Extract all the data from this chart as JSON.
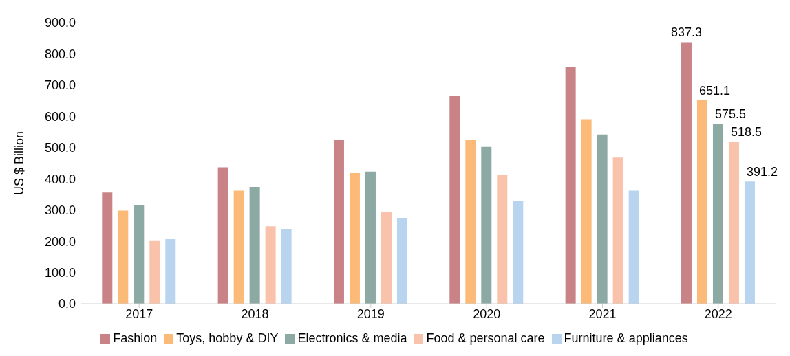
{
  "chart_data": {
    "type": "bar",
    "ylabel": "US $ Billion",
    "categories": [
      "2017",
      "2018",
      "2019",
      "2020",
      "2021",
      "2022"
    ],
    "ylim": [
      0,
      900
    ],
    "yticks": [
      {
        "value": 0,
        "label": "0.0"
      },
      {
        "value": 100,
        "label": "100.0"
      },
      {
        "value": 200,
        "label": "200.0"
      },
      {
        "value": 300,
        "label": "300.0"
      },
      {
        "value": 400,
        "label": "400.0"
      },
      {
        "value": 500,
        "label": "500.0"
      },
      {
        "value": 600,
        "label": "600.0"
      },
      {
        "value": 700,
        "label": "700.0"
      },
      {
        "value": 800,
        "label": "800.0"
      },
      {
        "value": 900,
        "label": "900.0"
      }
    ],
    "grid": false,
    "legend": "bottom",
    "series": [
      {
        "name": "Fashion",
        "color": "#c98286",
        "values": [
          356,
          437,
          525,
          666,
          759,
          837.3
        ],
        "value_labels": [
          null,
          null,
          null,
          null,
          null,
          "837.3"
        ]
      },
      {
        "name": "Toys, hobby & DIY",
        "color": "#fbba78",
        "values": [
          298,
          362,
          420,
          525,
          591,
          651.1
        ],
        "value_labels": [
          null,
          null,
          null,
          null,
          null,
          "651.1"
        ]
      },
      {
        "name": "Electronics & media",
        "color": "#8ca9a3",
        "values": [
          317,
          374,
          423,
          502,
          542,
          575.5
        ],
        "value_labels": [
          null,
          null,
          null,
          null,
          null,
          "575.5"
        ]
      },
      {
        "name": "Food & personal care",
        "color": "#f9c2ab",
        "values": [
          203,
          248,
          293,
          413,
          468,
          518.5
        ],
        "value_labels": [
          null,
          null,
          null,
          null,
          null,
          "518.5"
        ]
      },
      {
        "name": "Furniture & appliances",
        "color": "#b8d4ee",
        "values": [
          207,
          240,
          275,
          330,
          362,
          391.2
        ],
        "value_labels": [
          null,
          null,
          null,
          null,
          null,
          "391.2"
        ]
      }
    ]
  }
}
